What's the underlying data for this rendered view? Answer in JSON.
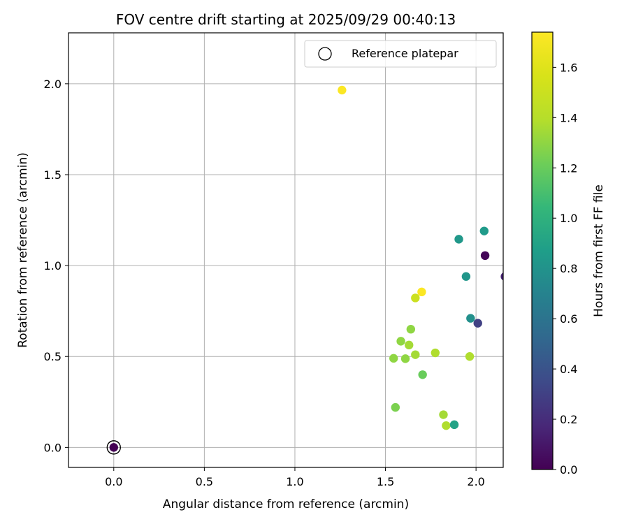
{
  "chart_data": {
    "type": "scatter",
    "title": "FOV centre drift starting at 2025/09/29 00:40:13",
    "xlabel": "Angular distance from reference (arcmin)",
    "ylabel": "Rotation from reference (arcmin)",
    "xlim": [
      -0.25,
      2.15
    ],
    "ylim": [
      -0.11,
      2.28
    ],
    "xticks": [
      0.0,
      0.5,
      1.0,
      1.5,
      2.0
    ],
    "xtick_labels": [
      "0.0",
      "0.5",
      "1.0",
      "1.5",
      "2.0"
    ],
    "yticks": [
      0.0,
      0.5,
      1.0,
      1.5,
      2.0
    ],
    "ytick_labels": [
      "0.0",
      "0.5",
      "1.0",
      "1.5",
      "2.0"
    ],
    "grid": true,
    "legend": {
      "position": "top-right",
      "entries": [
        "Reference platepar"
      ]
    },
    "reference_point": {
      "x": 0.0,
      "y": 0.0
    },
    "colorbar": {
      "label": "Hours from first FF file",
      "range": [
        0.0,
        1.74
      ],
      "colormap": "viridis",
      "ticks": [
        0.0,
        0.2,
        0.4,
        0.6,
        0.8,
        1.0,
        1.2,
        1.4,
        1.6
      ],
      "tick_labels": [
        "0.0",
        "0.2",
        "0.4",
        "0.6",
        "0.8",
        "1.0",
        "1.2",
        "1.4",
        "1.6"
      ]
    },
    "points": [
      {
        "x": 0.0,
        "y": 0.0,
        "c": 0.0
      },
      {
        "x": 1.26,
        "y": 1.965,
        "c": 1.73
      },
      {
        "x": 2.045,
        "y": 1.19,
        "c": 0.85
      },
      {
        "x": 1.905,
        "y": 1.145,
        "c": 0.83
      },
      {
        "x": 2.05,
        "y": 1.055,
        "c": 0.02
      },
      {
        "x": 1.945,
        "y": 0.94,
        "c": 0.82
      },
      {
        "x": 2.16,
        "y": 0.94,
        "c": 0.15
      },
      {
        "x": 1.7,
        "y": 0.855,
        "c": 1.73
      },
      {
        "x": 1.665,
        "y": 0.822,
        "c": 1.5
      },
      {
        "x": 1.97,
        "y": 0.71,
        "c": 0.78
      },
      {
        "x": 2.01,
        "y": 0.683,
        "c": 0.3
      },
      {
        "x": 1.64,
        "y": 0.65,
        "c": 1.3
      },
      {
        "x": 1.585,
        "y": 0.584,
        "c": 1.3
      },
      {
        "x": 1.63,
        "y": 0.563,
        "c": 1.35
      },
      {
        "x": 1.775,
        "y": 0.52,
        "c": 1.38
      },
      {
        "x": 1.665,
        "y": 0.51,
        "c": 1.35
      },
      {
        "x": 1.965,
        "y": 0.5,
        "c": 1.38
      },
      {
        "x": 1.545,
        "y": 0.49,
        "c": 1.3
      },
      {
        "x": 1.61,
        "y": 0.488,
        "c": 1.3
      },
      {
        "x": 1.705,
        "y": 0.4,
        "c": 1.2
      },
      {
        "x": 1.555,
        "y": 0.22,
        "c": 1.25
      },
      {
        "x": 1.82,
        "y": 0.18,
        "c": 1.35
      },
      {
        "x": 1.835,
        "y": 0.12,
        "c": 1.38
      },
      {
        "x": 1.88,
        "y": 0.125,
        "c": 0.9
      }
    ]
  },
  "colors": {
    "axis": "#000000",
    "grid": "#b0b0b0",
    "legend_border": "#cccccc"
  }
}
